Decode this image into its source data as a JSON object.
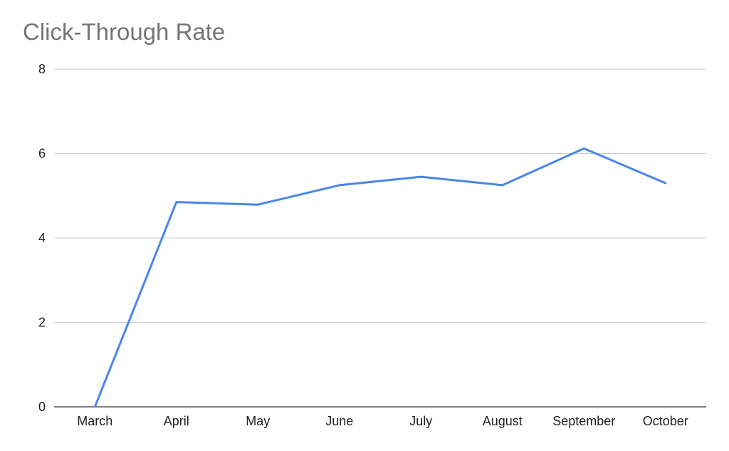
{
  "chart_data": {
    "type": "line",
    "title": "Click-Through Rate",
    "xlabel": "",
    "ylabel": "",
    "categories": [
      "March",
      "April",
      "May",
      "June",
      "July",
      "August",
      "September",
      "October"
    ],
    "series": [
      {
        "values": [
          0,
          4.85,
          4.79,
          5.25,
          5.45,
          5.25,
          6.12,
          5.3
        ],
        "color": "#4a86e8"
      }
    ],
    "ylim": [
      0,
      8
    ],
    "yticks": [
      0,
      2,
      4,
      6,
      8
    ],
    "grid": true,
    "legend": "none",
    "colors": {
      "line": "#4a86e8",
      "gridline": "#cccccc",
      "axis": "#333333",
      "title": "#757575"
    }
  }
}
